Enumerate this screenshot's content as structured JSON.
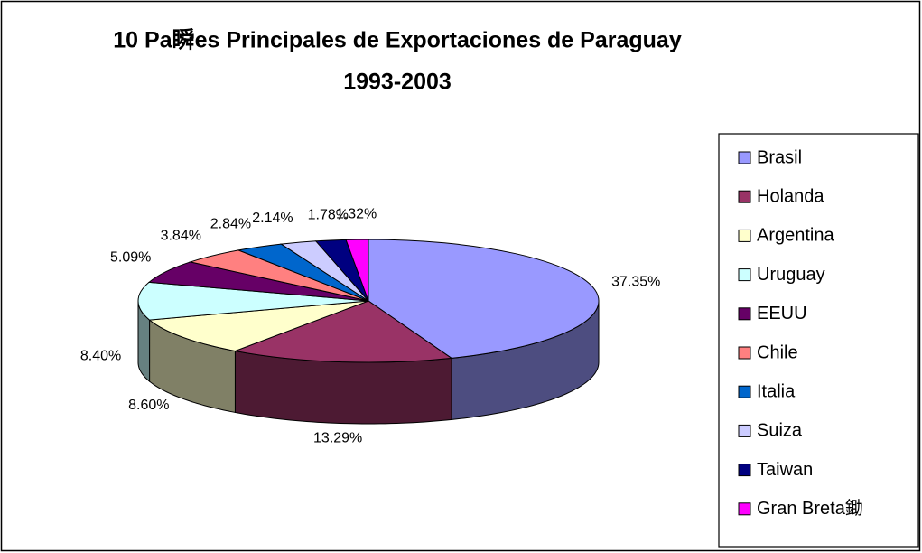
{
  "chart_data": {
    "type": "pie3d",
    "title": "10 Pa瞬es Principales de Exportaciones de Paraguay",
    "subtitle": "1993-2003",
    "categories": [
      "Brasil",
      "Holanda",
      "Argentina",
      "Uruguay",
      "EEUU",
      "Chile",
      "Italia",
      "Suiza",
      "Taiwan",
      "Gran Breta鋤"
    ],
    "values": [
      37.35,
      13.29,
      8.6,
      8.4,
      5.09,
      3.84,
      2.84,
      2.14,
      1.78,
      1.32
    ],
    "value_labels": [
      "37.35%",
      "13.29%",
      "8.60%",
      "8.40%",
      "5.09%",
      "3.84%",
      "2.84%",
      "2.14%",
      "1.78%",
      "1.32%"
    ],
    "colors": [
      "#9999ff",
      "#993366",
      "#ffffcc",
      "#ccffff",
      "#660066",
      "#ff8080",
      "#0066cc",
      "#ccccff",
      "#000080",
      "#ff00ff"
    ],
    "legend": "right"
  }
}
